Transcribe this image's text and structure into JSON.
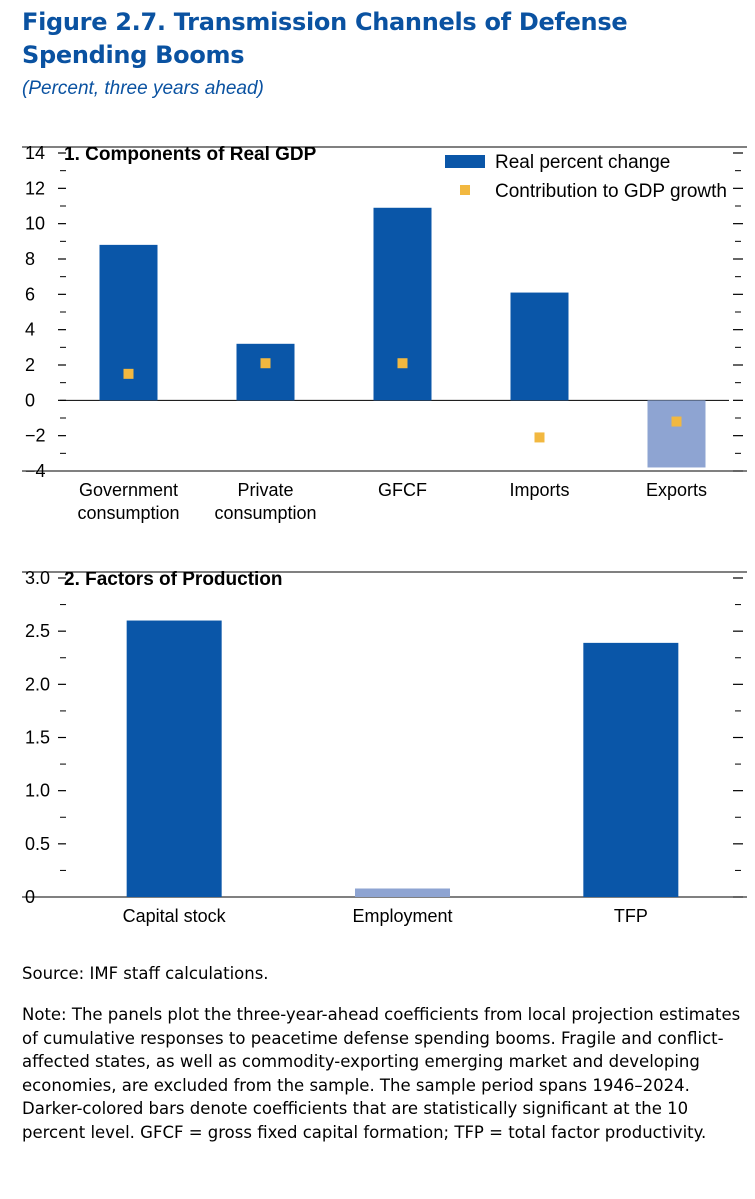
{
  "figure": {
    "title": "Figure 2.7.  Transmission Channels of Defense Spending Booms",
    "subtitle": "(Percent, three years ahead)"
  },
  "colors": {
    "title": "#0a52a1",
    "significant_bar": "#0a56a8",
    "insignificant_bar": "#8ea4d2",
    "marker": "#f2b840"
  },
  "chart_data": [
    {
      "type": "bar",
      "title": "1. Components of Real GDP",
      "categories": [
        "Government\nconsumption",
        "Private\nconsumption",
        "GFCF",
        "Imports",
        "Exports"
      ],
      "series": [
        {
          "name": "Real percent change",
          "kind": "bar",
          "values": [
            8.8,
            3.2,
            10.9,
            6.1,
            -3.8
          ],
          "significant": [
            true,
            true,
            true,
            true,
            false
          ]
        },
        {
          "name": "Contribution to GDP growth",
          "kind": "marker",
          "values": [
            1.5,
            2.1,
            2.1,
            -2.1,
            -1.2
          ]
        }
      ],
      "ylim": [
        -4,
        14
      ],
      "yticks": [
        -4,
        -2,
        0,
        2,
        4,
        6,
        8,
        10,
        12,
        14
      ],
      "ytick_labels": [
        "−4",
        "−2",
        "0",
        "2",
        "4",
        "6",
        "8",
        "10",
        "12",
        "14"
      ],
      "legend": "top-right"
    },
    {
      "type": "bar",
      "title": "2. Factors of Production",
      "categories": [
        "Capital stock",
        "Employment",
        "TFP"
      ],
      "series": [
        {
          "kind": "bar",
          "values": [
            2.6,
            0.08,
            2.39
          ],
          "significant": [
            true,
            false,
            true
          ]
        }
      ],
      "ylim": [
        0,
        3
      ],
      "yticks": [
        0,
        0.5,
        1.0,
        1.5,
        2.0,
        2.5,
        3.0
      ],
      "ytick_labels": [
        "0",
        "0.5",
        "1.0",
        "1.5",
        "2.0",
        "2.5",
        "3.0"
      ]
    }
  ],
  "source": "Source: IMF staff calculations.",
  "note": "Note: The panels plot the three-year-ahead coefficients from local projection estimates of cumulative responses to peacetime defense spending booms. Fragile and conflict-affected states, as well as commodity-exporting emerging market and developing economies, are excluded from the sample. The sample period spans 1946–2024. Darker-colored bars denote coefficients that are statistically significant at the 10 percent level. GFCF = gross fixed capital formation; TFP = total factor productivity."
}
